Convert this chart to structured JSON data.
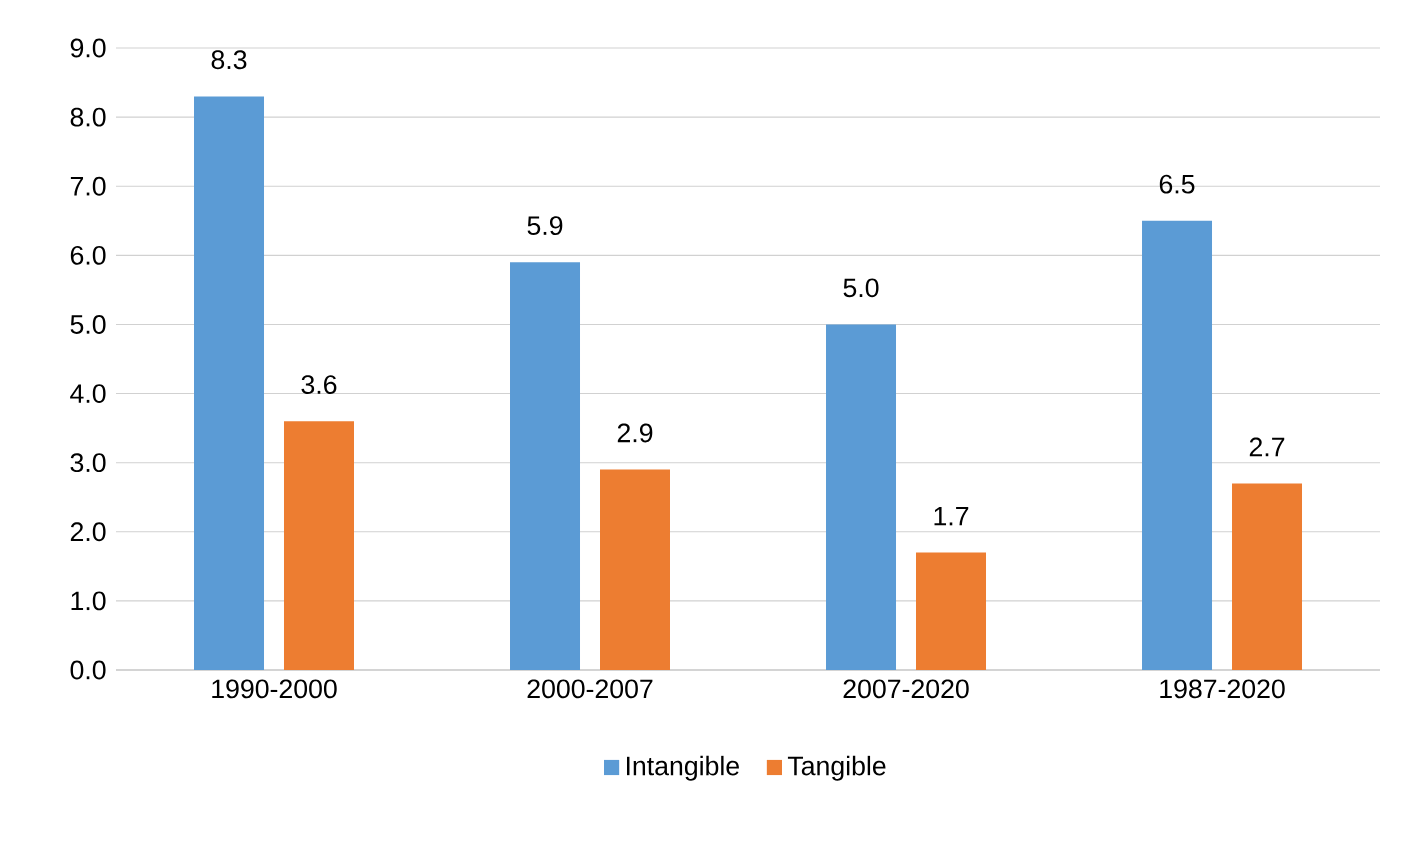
{
  "chart_data": {
    "type": "bar",
    "categories": [
      "1990-2000",
      "2000-2007",
      "2007-2020",
      "1987-2020"
    ],
    "series": [
      {
        "name": "Intangible",
        "color": "#5b9bd5",
        "values": [
          8.3,
          5.9,
          5.0,
          6.5
        ],
        "value_labels": [
          "8.3",
          "5.9",
          "5.0",
          "6.5"
        ]
      },
      {
        "name": "Tangible",
        "color": "#ed7d31",
        "values": [
          3.6,
          2.9,
          1.7,
          2.7
        ],
        "value_labels": [
          "3.6",
          "2.9",
          "1.7",
          "2.7"
        ]
      }
    ],
    "ylim": [
      0,
      9
    ],
    "yticks": [
      {
        "value": 0,
        "label": "0.0"
      },
      {
        "value": 1,
        "label": "1.0"
      },
      {
        "value": 2,
        "label": "2.0"
      },
      {
        "value": 3,
        "label": "3.0"
      },
      {
        "value": 4,
        "label": "4.0"
      },
      {
        "value": 5,
        "label": "5.0"
      },
      {
        "value": 6,
        "label": "6.0"
      },
      {
        "value": 7,
        "label": "7.0"
      },
      {
        "value": 8,
        "label": "8.0"
      },
      {
        "value": 9,
        "label": "9.0"
      }
    ],
    "grid": "y",
    "legend": "bottom"
  }
}
